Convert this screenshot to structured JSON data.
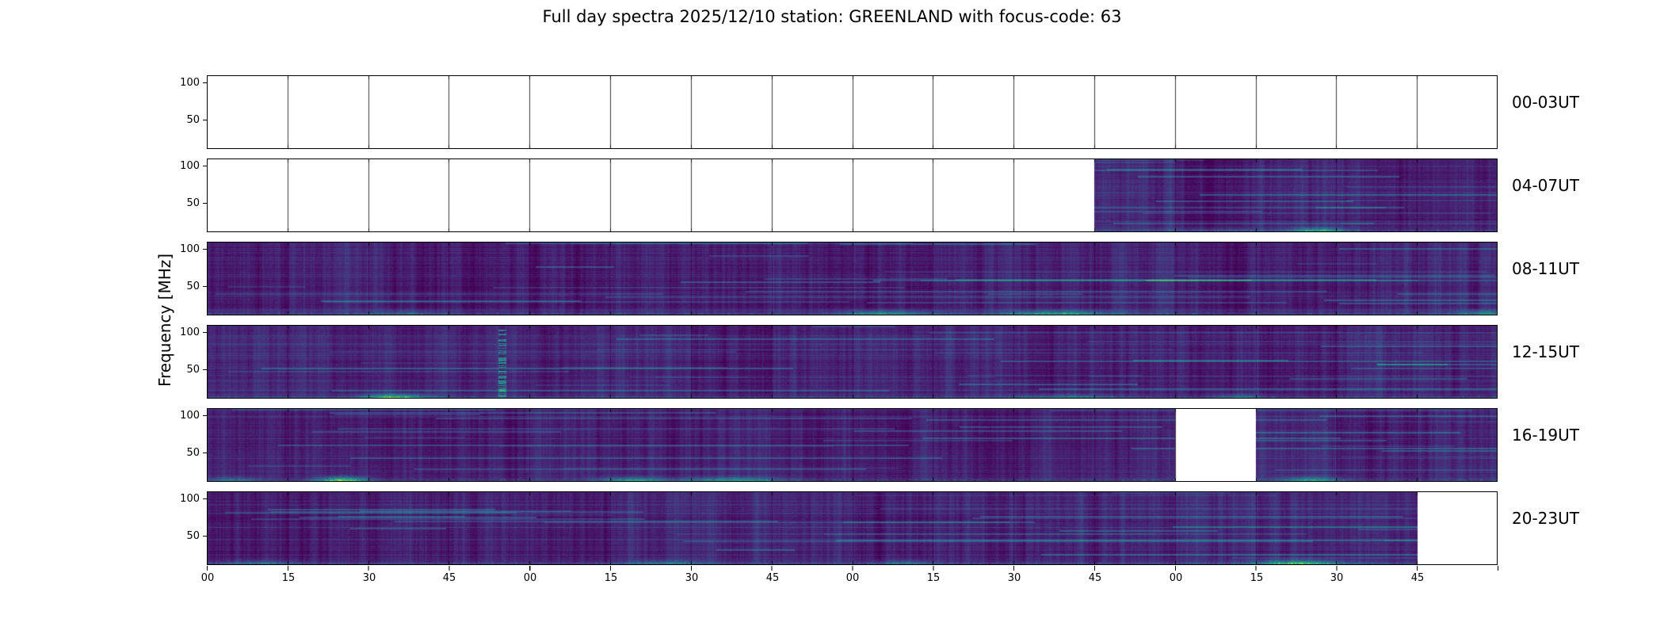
{
  "title": "Full day spectra 2025/12/10 station: GREENLAND with focus-code: 63",
  "ylabel": "Frequency [MHz]",
  "axes": {
    "y_tick_labels": [
      "100",
      "50"
    ],
    "x_tick_labels": [
      "00",
      "15",
      "30",
      "45",
      "00",
      "15",
      "30",
      "45",
      "00",
      "15",
      "30",
      "45",
      "00",
      "15",
      "30",
      "45"
    ]
  },
  "chart_data": {
    "type": "heatmap",
    "title": "Full day spectra 2025/12/10 station: GREENLAND with focus-code: 63",
    "date": "2025/12/10",
    "station": "GREENLAND",
    "focus_code": "63",
    "colormap": "viridis",
    "ylabel": "Frequency [MHz]",
    "y_ticks_mhz": [
      100,
      50
    ],
    "x_tick_labels": [
      "00",
      "15",
      "30",
      "45",
      "00",
      "15",
      "30",
      "45",
      "00",
      "15",
      "30",
      "45",
      "00",
      "15",
      "30",
      "45"
    ],
    "segments_per_row": 16,
    "segment_minutes": 15,
    "rows": [
      {
        "label": "00-03UT",
        "data_segments": [],
        "features": [],
        "vstreaks": []
      },
      {
        "label": "04-07UT",
        "data_segments": [
          [
            11,
            16
          ]
        ],
        "features": [
          {
            "x": 0.861,
            "w": 0.02,
            "amp": 0.55
          },
          {
            "x": 0.78,
            "w": 0.05,
            "amp": 0.15
          }
        ],
        "vstreaks": []
      },
      {
        "label": "08-11UT",
        "data_segments": [
          [
            0,
            16
          ]
        ],
        "features": [
          {
            "x": 0.525,
            "w": 0.035,
            "amp": 0.45
          },
          {
            "x": 0.66,
            "w": 0.04,
            "amp": 0.5
          },
          {
            "x": 0.99,
            "w": 0.02,
            "amp": 0.4
          },
          {
            "x": 0.155,
            "w": 0.025,
            "amp": 0.2
          }
        ],
        "vstreaks": []
      },
      {
        "label": "12-15UT",
        "data_segments": [
          [
            0,
            16
          ]
        ],
        "features": [
          {
            "x": 0.145,
            "w": 0.025,
            "amp": 0.7
          },
          {
            "x": 0.665,
            "w": 0.04,
            "amp": 0.3
          },
          {
            "x": 0.8,
            "w": 0.02,
            "amp": 0.3
          }
        ],
        "vstreaks": [
          {
            "x": 0.2285,
            "w": 0.006,
            "amp": 0.5
          }
        ]
      },
      {
        "label": "16-19UT",
        "data_segments": [
          [
            0,
            12
          ],
          [
            13,
            16
          ]
        ],
        "features": [
          {
            "x": 0.105,
            "w": 0.018,
            "amp": 0.85
          },
          {
            "x": 0.33,
            "w": 0.025,
            "amp": 0.5
          },
          {
            "x": 0.407,
            "w": 0.04,
            "amp": 0.45
          },
          {
            "x": 0.855,
            "w": 0.022,
            "amp": 0.5
          },
          {
            "x": 0.02,
            "w": 0.02,
            "amp": 0.3
          }
        ],
        "vstreaks": []
      },
      {
        "label": "20-23UT",
        "data_segments": [
          [
            0,
            15
          ]
        ],
        "features": [
          {
            "x": 0.845,
            "w": 0.03,
            "amp": 0.7
          },
          {
            "x": 0.54,
            "w": 0.02,
            "amp": 0.3
          },
          {
            "x": 0.355,
            "w": 0.03,
            "amp": 0.25
          },
          {
            "x": 0.04,
            "w": 0.03,
            "amp": 0.25
          }
        ],
        "vstreaks": []
      }
    ]
  }
}
